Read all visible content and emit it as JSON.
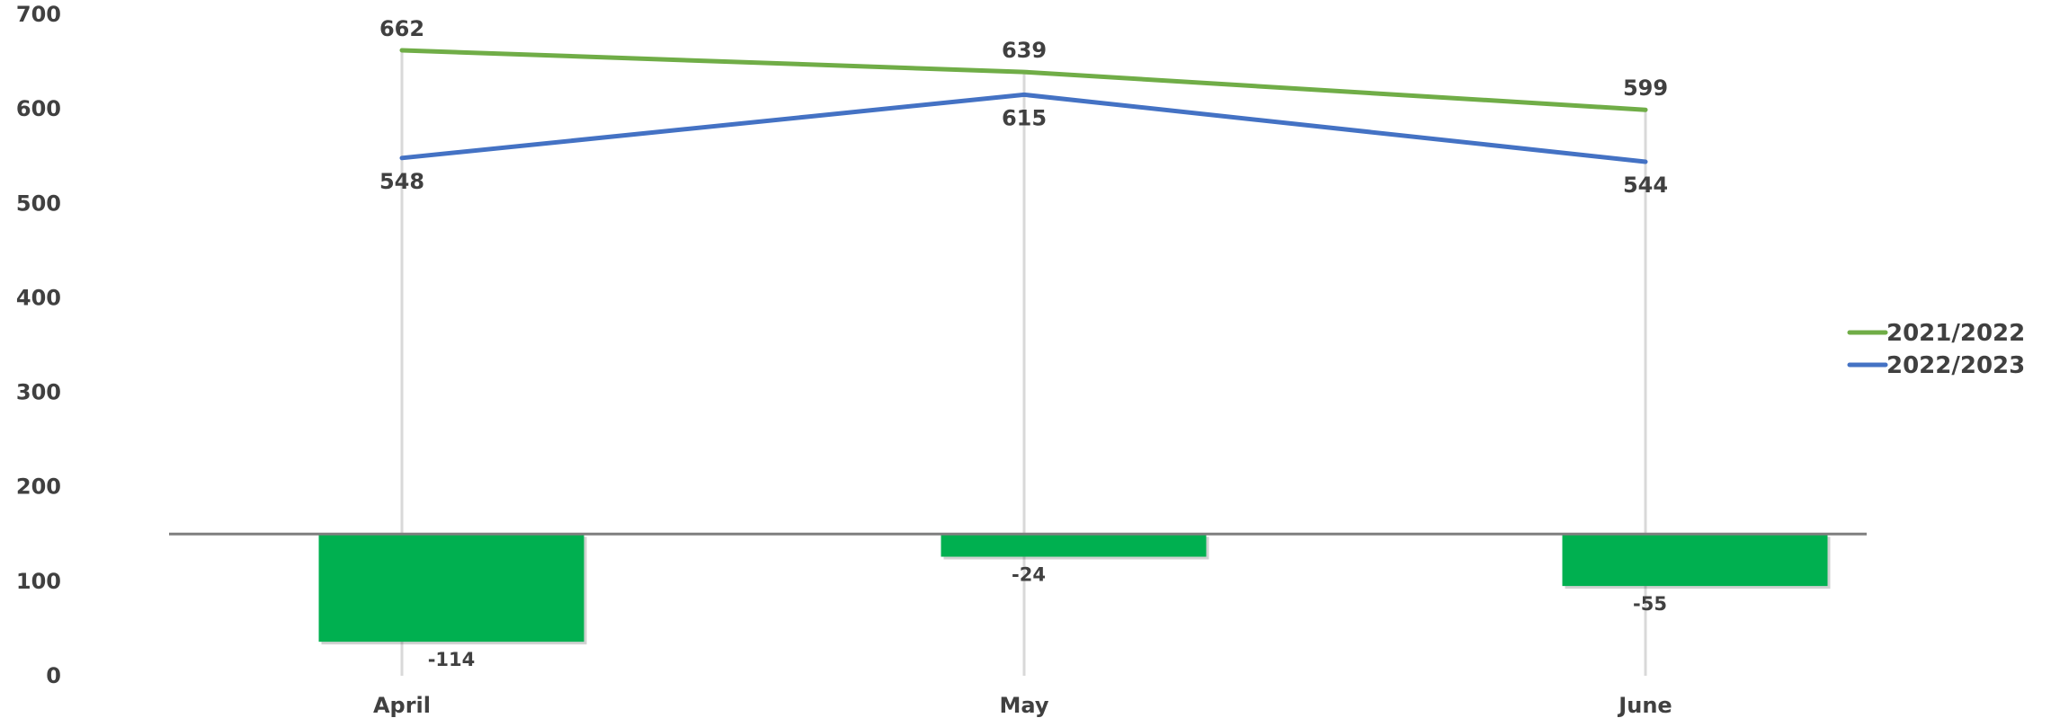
{
  "chart_data": {
    "type": "line",
    "categories": [
      "April",
      "May",
      "June"
    ],
    "ylim": [
      0,
      700
    ],
    "yticks": [
      0,
      100,
      200,
      300,
      400,
      500,
      600,
      700
    ],
    "series": [
      {
        "name": "2021/2022",
        "type": "line",
        "color": "#70AD47",
        "values": [
          662,
          639,
          599
        ]
      },
      {
        "name": "2022/2023",
        "type": "line",
        "color": "#4472C4",
        "values": [
          548,
          615,
          544
        ]
      }
    ],
    "difference": {
      "type": "bar",
      "color": "#00B050",
      "baseline": 150,
      "values": [
        -114,
        -24,
        -55
      ]
    },
    "gridlines": "vertical",
    "legend": "right"
  }
}
